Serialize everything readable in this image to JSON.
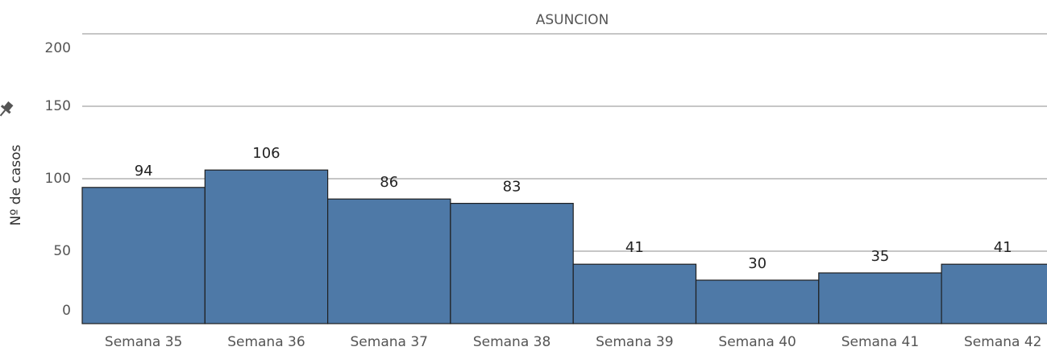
{
  "chart_data": {
    "type": "bar",
    "title": "ASUNCION",
    "y_label": "Nº de casos",
    "categories": [
      "Semana 35",
      "Semana 36",
      "Semana 37",
      "Semana 38",
      "Semana 39",
      "Semana 40",
      "Semana 41",
      "Semana 42"
    ],
    "values": [
      94,
      106,
      86,
      83,
      41,
      30,
      35,
      41
    ],
    "color": "#4e79a7",
    "ylim": [
      0,
      200
    ],
    "yticks": [
      0,
      50,
      100,
      150,
      200
    ],
    "grid": true
  }
}
